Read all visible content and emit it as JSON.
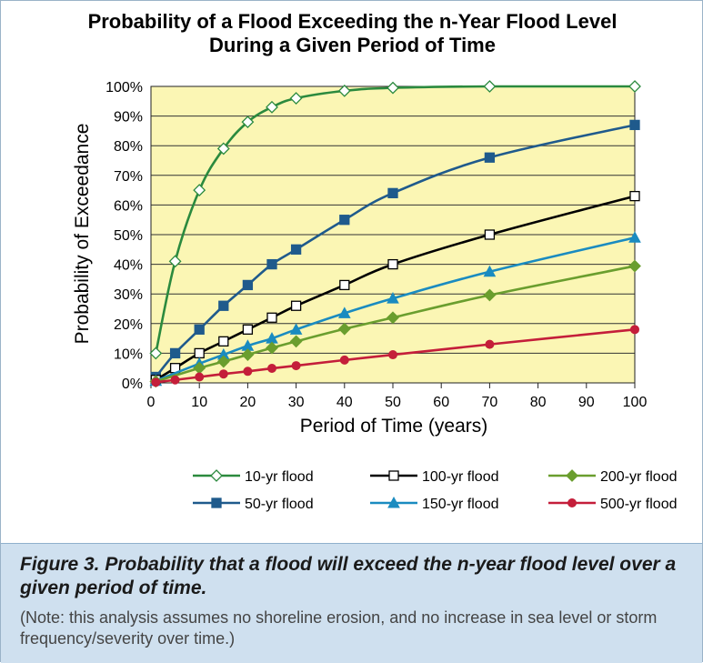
{
  "chart_data": {
    "type": "line",
    "title": "Probability of a Flood Exceeding the n-Year Flood Level During a Given Period of Time",
    "title_lines": [
      "Probability of a Flood Exceeding the n-Year Flood Level",
      "During a Given Period of Time"
    ],
    "xlabel": "Period of Time (years)",
    "ylabel": "Probability of Exceedance",
    "xlim": [
      0,
      100
    ],
    "ylim": [
      0,
      100
    ],
    "x_ticks": [
      0,
      10,
      20,
      30,
      40,
      50,
      60,
      70,
      80,
      90,
      100
    ],
    "y_ticks": [
      0,
      10,
      20,
      30,
      40,
      50,
      60,
      70,
      80,
      90,
      100
    ],
    "y_tick_labels": [
      "0%",
      "10%",
      "20%",
      "30%",
      "40%",
      "50%",
      "60%",
      "70%",
      "80%",
      "90%",
      "100%"
    ],
    "grid": "horizontal",
    "plot_background": "#fbf6b4",
    "series": [
      {
        "name": "10-yr flood",
        "return_period": 10,
        "color": "#2b8a3e",
        "marker": "diamond-open",
        "x": [
          1,
          5,
          10,
          15,
          20,
          25,
          30,
          40,
          50,
          70,
          100
        ],
        "values": [
          10,
          41,
          65,
          79,
          88,
          93,
          96,
          98.5,
          99.5,
          100,
          100
        ]
      },
      {
        "name": "50-yr flood",
        "return_period": 50,
        "color": "#1f5a8c",
        "marker": "square",
        "x": [
          1,
          5,
          10,
          15,
          20,
          25,
          30,
          40,
          50,
          70,
          100
        ],
        "values": [
          2,
          10,
          18,
          26,
          33,
          40,
          45,
          55,
          64,
          76,
          87
        ]
      },
      {
        "name": "100-yr flood",
        "return_period": 100,
        "color": "#000000",
        "marker": "square-open",
        "x": [
          1,
          5,
          10,
          15,
          20,
          25,
          30,
          40,
          50,
          70,
          100
        ],
        "values": [
          1,
          5,
          10,
          14,
          18,
          22,
          26,
          33,
          40,
          50,
          63
        ]
      },
      {
        "name": "150-yr flood",
        "return_period": 150,
        "color": "#1a8bc0",
        "marker": "triangle",
        "x": [
          1,
          10,
          15,
          20,
          25,
          30,
          40,
          50,
          70,
          100
        ],
        "values": [
          0.7,
          6.5,
          9.5,
          12.5,
          15,
          18,
          23.5,
          28.5,
          37.5,
          49
        ]
      },
      {
        "name": "200-yr flood",
        "return_period": 200,
        "color": "#6a9e2e",
        "marker": "diamond",
        "x": [
          1,
          10,
          15,
          20,
          25,
          30,
          40,
          50,
          70,
          100
        ],
        "values": [
          0.5,
          5,
          7.2,
          9.5,
          11.8,
          14,
          18.2,
          22,
          29.6,
          39.4
        ]
      },
      {
        "name": "500-yr flood",
        "return_period": 500,
        "color": "#c41e3a",
        "marker": "circle",
        "x": [
          1,
          5,
          10,
          15,
          20,
          25,
          30,
          40,
          50,
          70,
          100
        ],
        "values": [
          0.2,
          1,
          2,
          3,
          3.9,
          4.9,
          5.8,
          7.7,
          9.5,
          13,
          18
        ]
      }
    ],
    "legend": {
      "position": "bottom",
      "rows": [
        [
          "10-yr flood",
          "100-yr flood",
          "200-yr flood"
        ],
        [
          "50-yr flood",
          "150-yr flood",
          "500-yr flood"
        ]
      ]
    }
  },
  "caption": {
    "title": "Figure 3.  Probability that a flood will exceed the n-year flood level over a given period of time.",
    "note": "(Note: this analysis assumes no shoreline erosion, and no increase in sea level or storm frequency/severity over time.)",
    "background": "#cfe0ef"
  }
}
